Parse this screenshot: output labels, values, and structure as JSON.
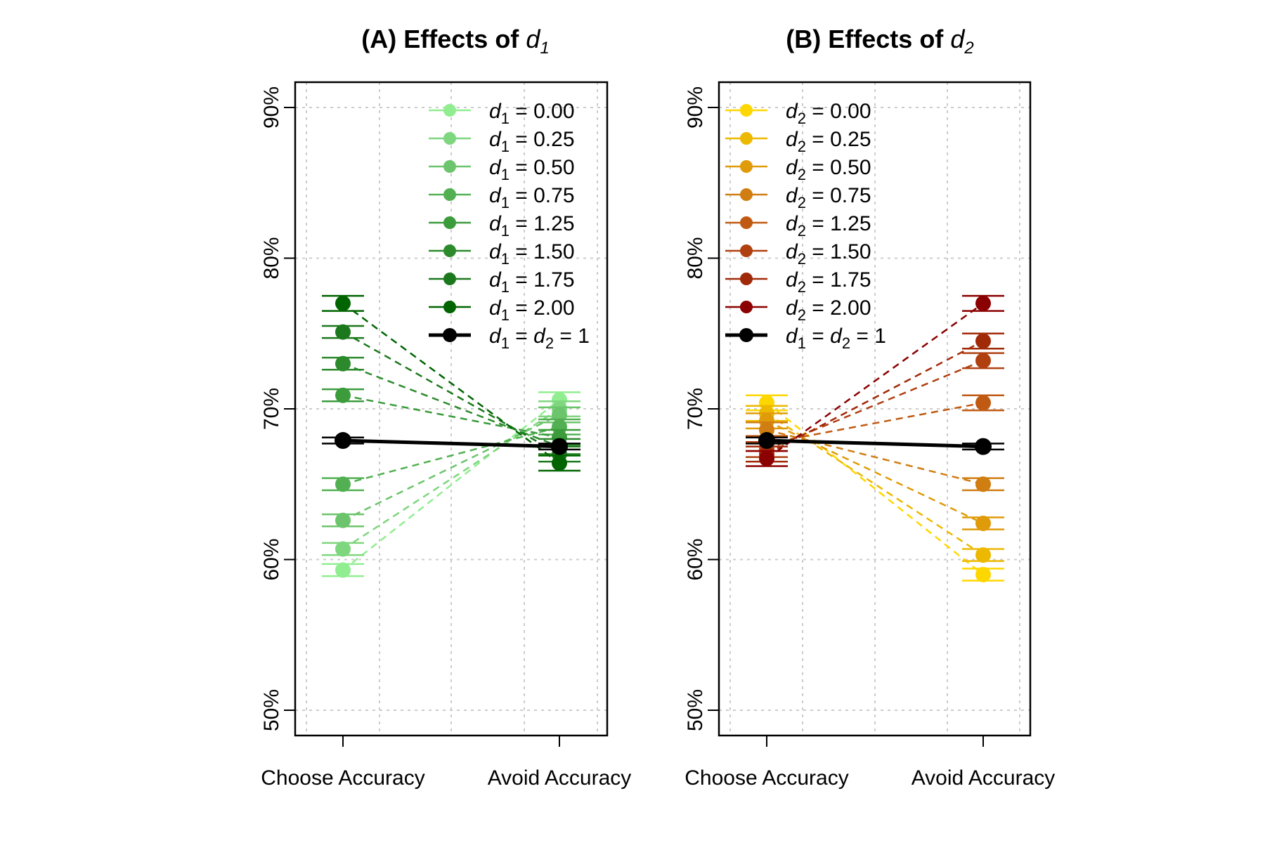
{
  "chart_data": [
    {
      "type": "line",
      "title_prefix": "(A) Effects of",
      "title_var": "d",
      "title_sub": "1",
      "categories": [
        "Choose Accuracy",
        "Avoid Accuracy"
      ],
      "y_ticks": [
        "50%",
        "60%",
        "70%",
        "80%",
        "90%"
      ],
      "ylim": [
        0.5,
        0.9
      ],
      "grid": true,
      "legend_position": "top-right",
      "series": [
        {
          "name": "d1 = 0.00",
          "var": "d",
          "sub": "1",
          "value_text": "0.00",
          "color": "#90EE90",
          "values": [
            0.593,
            0.706
          ],
          "err": [
            0.004,
            0.005
          ]
        },
        {
          "name": "d1 = 0.25",
          "var": "d",
          "sub": "1",
          "value_text": "0.25",
          "color": "#7ed67e",
          "values": [
            0.607,
            0.7
          ],
          "err": [
            0.004,
            0.005
          ]
        },
        {
          "name": "d1 = 0.50",
          "var": "d",
          "sub": "1",
          "value_text": "0.50",
          "color": "#6cc46c",
          "values": [
            0.626,
            0.696
          ],
          "err": [
            0.004,
            0.005
          ]
        },
        {
          "name": "d1 = 0.75",
          "var": "d",
          "sub": "1",
          "value_text": "0.75",
          "color": "#52b052",
          "values": [
            0.65,
            0.688
          ],
          "err": [
            0.004,
            0.005
          ]
        },
        {
          "name": "d1 = 1.25",
          "var": "d",
          "sub": "1",
          "value_text": "1.25",
          "color": "#3c9c3c",
          "values": [
            0.709,
            0.681
          ],
          "err": [
            0.004,
            0.005
          ]
        },
        {
          "name": "d1 = 1.50",
          "var": "d",
          "sub": "1",
          "value_text": "1.50",
          "color": "#2c8a2c",
          "values": [
            0.73,
            0.675
          ],
          "err": [
            0.004,
            0.005
          ]
        },
        {
          "name": "d1 = 1.75",
          "var": "d",
          "sub": "1",
          "value_text": "1.75",
          "color": "#1c781c",
          "values": [
            0.751,
            0.67
          ],
          "err": [
            0.004,
            0.005
          ]
        },
        {
          "name": "d1 = 2.00",
          "var": "d",
          "sub": "1",
          "value_text": "2.00",
          "color": "#006400",
          "values": [
            0.77,
            0.664
          ],
          "err": [
            0.005,
            0.005
          ]
        }
      ],
      "reference": {
        "name": "d1 = d2 = 1",
        "color": "#000000",
        "values": [
          0.679,
          0.675
        ],
        "err": [
          0.002,
          0.002
        ]
      }
    },
    {
      "type": "line",
      "title_prefix": "(B) Effects of",
      "title_var": "d",
      "title_sub": "2",
      "categories": [
        "Choose Accuracy",
        "Avoid Accuracy"
      ],
      "y_ticks": [
        "50%",
        "60%",
        "70%",
        "80%",
        "90%"
      ],
      "ylim": [
        0.5,
        0.9
      ],
      "grid": true,
      "legend_position": "top-left",
      "series": [
        {
          "name": "d2 = 0.00",
          "var": "d",
          "sub": "2",
          "value_text": "0.00",
          "color": "#FFD700",
          "values": [
            0.704,
            0.59
          ],
          "err": [
            0.005,
            0.004
          ]
        },
        {
          "name": "d2 = 0.25",
          "var": "d",
          "sub": "2",
          "value_text": "0.25",
          "color": "#EDB800",
          "values": [
            0.697,
            0.603
          ],
          "err": [
            0.005,
            0.004
          ]
        },
        {
          "name": "d2 = 0.50",
          "var": "d",
          "sub": "2",
          "value_text": "0.50",
          "color": "#DF9B0A",
          "values": [
            0.692,
            0.624
          ],
          "err": [
            0.005,
            0.004
          ]
        },
        {
          "name": "d2 = 0.75",
          "var": "d",
          "sub": "2",
          "value_text": "0.75",
          "color": "#D07D12",
          "values": [
            0.686,
            0.65
          ],
          "err": [
            0.005,
            0.004
          ]
        },
        {
          "name": "d2 = 1.25",
          "var": "d",
          "sub": "2",
          "value_text": "1.25",
          "color": "#C05A12",
          "values": [
            0.677,
            0.704
          ],
          "err": [
            0.005,
            0.005
          ]
        },
        {
          "name": "d2 = 1.50",
          "var": "d",
          "sub": "2",
          "value_text": "1.50",
          "color": "#B04010",
          "values": [
            0.673,
            0.732
          ],
          "err": [
            0.005,
            0.005
          ]
        },
        {
          "name": "d2 = 1.75",
          "var": "d",
          "sub": "2",
          "value_text": "1.75",
          "color": "#A02A08",
          "values": [
            0.67,
            0.745
          ],
          "err": [
            0.005,
            0.005
          ]
        },
        {
          "name": "d2 = 2.00",
          "var": "d",
          "sub": "2",
          "value_text": "2.00",
          "color": "#8B0000",
          "values": [
            0.667,
            0.77
          ],
          "err": [
            0.005,
            0.005
          ]
        }
      ],
      "reference": {
        "name": "d1 = d2 = 1",
        "color": "#000000",
        "values": [
          0.679,
          0.675
        ],
        "err": [
          0.002,
          0.002
        ]
      }
    }
  ]
}
